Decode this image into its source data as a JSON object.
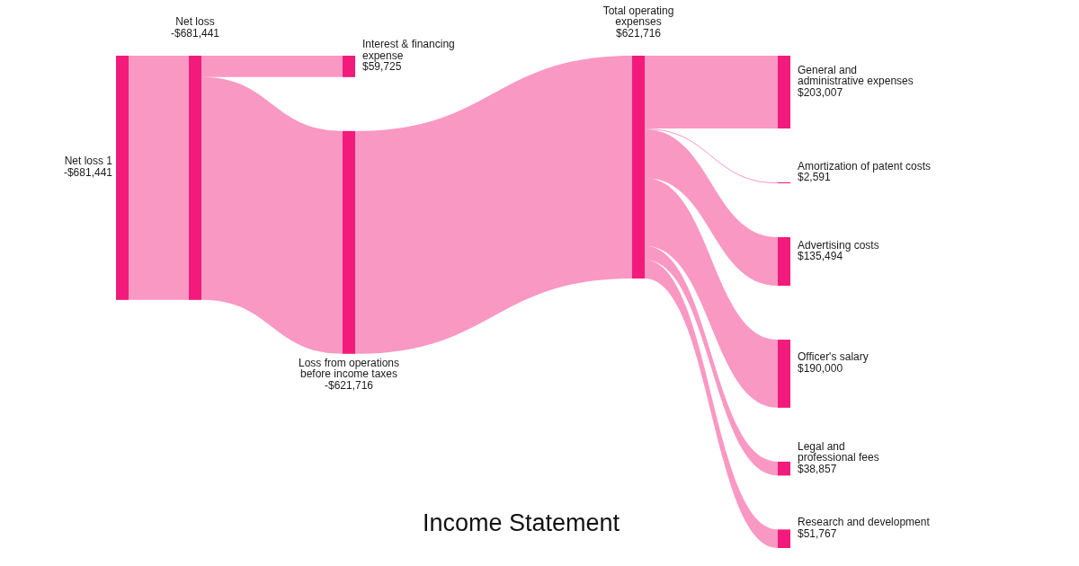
{
  "chart_data": {
    "type": "other",
    "title": "Income Statement",
    "categories": [
      "Net loss 1",
      "Net loss",
      "Interest & financing\nexpense",
      "Loss from operations\nbefore income taxes",
      "Total operating\nexpenses",
      "General and\nadministrative expenses",
      "Amortization of patent costs",
      "Advertising costs",
      "Officer's salary",
      "Legal and\nprofessional fees",
      "Research and development"
    ],
    "values": [
      -681441,
      -681441,
      59725,
      -621716,
      621716,
      203007,
      2591,
      135494,
      190000,
      38857,
      51767
    ],
    "value_labels": [
      "-$681,441",
      "-$681,441",
      "$59,725",
      "-$621,716",
      "$621,716",
      "$203,007",
      "$2,591",
      "$135,494",
      "$190,000",
      "$38,857",
      "$51,767"
    ],
    "color": "#f21b7b"
  }
}
